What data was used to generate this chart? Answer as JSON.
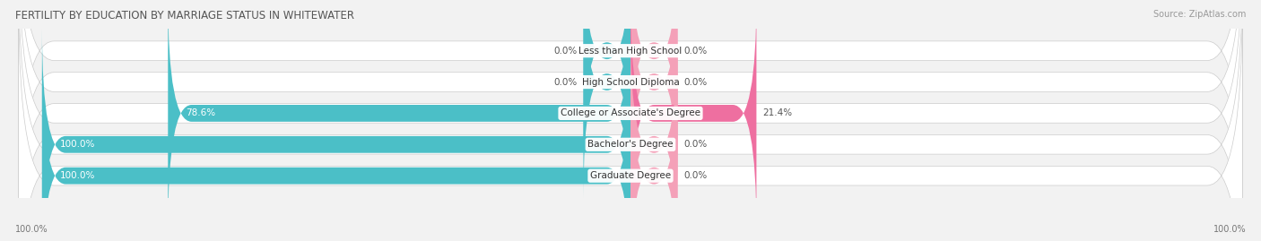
{
  "title": "FERTILITY BY EDUCATION BY MARRIAGE STATUS IN WHITEWATER",
  "source": "Source: ZipAtlas.com",
  "categories": [
    "Less than High School",
    "High School Diploma",
    "College or Associate's Degree",
    "Bachelor's Degree",
    "Graduate Degree"
  ],
  "married": [
    0.0,
    0.0,
    78.6,
    100.0,
    100.0
  ],
  "unmarried": [
    0.0,
    0.0,
    21.4,
    0.0,
    0.0
  ],
  "married_color": "#4BBFC7",
  "unmarried_color": "#F4A0B8",
  "unmarried_color_vivid": "#EE6FA0",
  "bg_color": "#F2F2F2",
  "bar_row_bg": "#FFFFFF",
  "bar_height": 0.62,
  "figsize": [
    14.06,
    2.69
  ],
  "dpi": 100,
  "title_fontsize": 8.5,
  "label_fontsize": 7.5,
  "value_fontsize": 7.5,
  "legend_fontsize": 8,
  "source_fontsize": 7,
  "left_axis_label": "100.0%",
  "right_axis_label": "100.0%",
  "xlim": [
    -105,
    105
  ],
  "min_bar_display": 8
}
